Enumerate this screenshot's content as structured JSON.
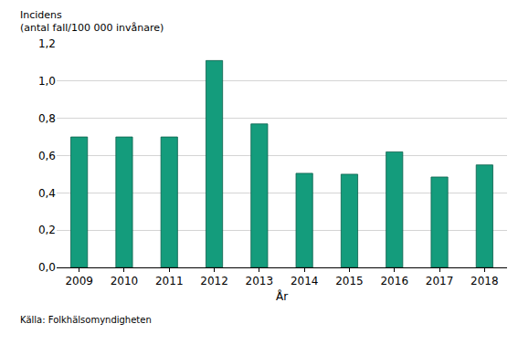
{
  "chart_data": {
    "type": "bar",
    "ylabel": [
      "Incidens",
      "(antal fall/100 000 invånare)"
    ],
    "xlabel": "År",
    "annotations": [
      "Källa: Folkhälsomyndigheten"
    ],
    "categories": [
      "2009",
      "2010",
      "2011",
      "2012",
      "2013",
      "2014",
      "2015",
      "2016",
      "2017",
      "2018"
    ],
    "values": [
      0.7,
      0.7,
      0.7,
      1.11,
      0.77,
      0.505,
      0.5,
      0.62,
      0.485,
      0.55
    ],
    "color": "#149c7c",
    "ylim": [
      0,
      1.2
    ],
    "yticks": [
      {
        "value": 0,
        "label": "0,0"
      },
      {
        "value": 0.2,
        "label": "0,2"
      },
      {
        "value": 0.4,
        "label": "0,4"
      },
      {
        "value": 0.6,
        "label": "0,6"
      },
      {
        "value": 0.8,
        "label": "0,8"
      },
      {
        "value": 1.0,
        "label": "1,0"
      },
      {
        "value": 1.2,
        "label": "1,2"
      }
    ],
    "grid": true
  }
}
